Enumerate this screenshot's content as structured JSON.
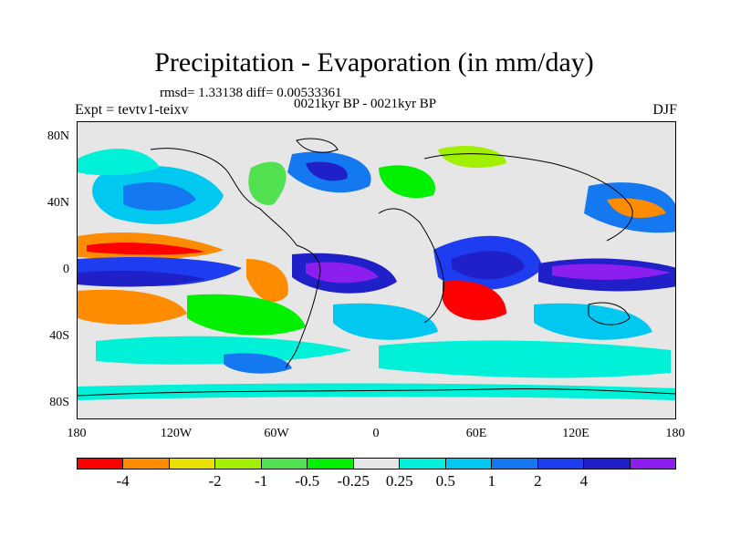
{
  "title": "Precipitation - Evaporation (in mm/day)",
  "stats": "rmsd= 1.33138  diff= 0.00533361",
  "period": "0021kyr BP - 0021kyr BP",
  "experiment": "Expt = tevtv1-teixv",
  "season": "DJF",
  "map": {
    "lat_labels": [
      "80N",
      "40N",
      "0",
      "40S",
      "80S"
    ],
    "lon_labels": [
      "180",
      "120W",
      "60W",
      "0",
      "60E",
      "120E",
      "180"
    ]
  },
  "colorbar": {
    "colors": [
      "#ff0000",
      "#ff8c00",
      "#e8e000",
      "#a0f000",
      "#50e050",
      "#00f000",
      "#e6e6e6",
      "#00f0d8",
      "#00c8f0",
      "#1478f0",
      "#1e3cf0",
      "#2020c8",
      "#8c1ef0"
    ],
    "labels": [
      "-4",
      "-2",
      "-1",
      "-0.5",
      "-0.25",
      "0.25",
      "0.5",
      "1",
      "2",
      "4"
    ]
  }
}
